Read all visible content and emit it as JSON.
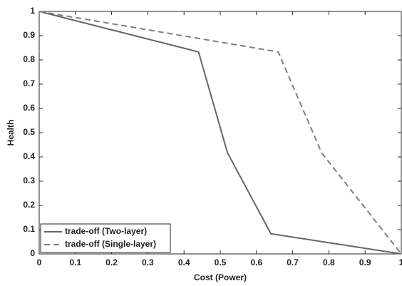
{
  "chart_data": {
    "type": "line",
    "xlabel": "Cost (Power)",
    "ylabel": "Health",
    "xlim": [
      0,
      1
    ],
    "ylim": [
      0,
      1
    ],
    "xticks": [
      0,
      0.1,
      0.2,
      0.3,
      0.4,
      0.5,
      0.6,
      0.7,
      0.8,
      0.9,
      1
    ],
    "yticks": [
      0,
      0.1,
      0.2,
      0.3,
      0.4,
      0.5,
      0.6,
      0.7,
      0.8,
      0.9,
      1
    ],
    "grid": false,
    "legend": "lower left",
    "series": [
      {
        "name": "trade-off (Two-layer)",
        "color": "#666666",
        "line_style": "solid",
        "x": [
          0,
          0.44,
          0.52,
          0.64,
          1
        ],
        "values": [
          1,
          0.833,
          0.417,
          0.083,
          0
        ]
      },
      {
        "name": "trade-off (Single-layer)",
        "color": "#808080",
        "line_style": "dashed",
        "x": [
          0,
          0.66,
          0.78,
          1
        ],
        "values": [
          1,
          0.833,
          0.417,
          0
        ]
      }
    ]
  }
}
